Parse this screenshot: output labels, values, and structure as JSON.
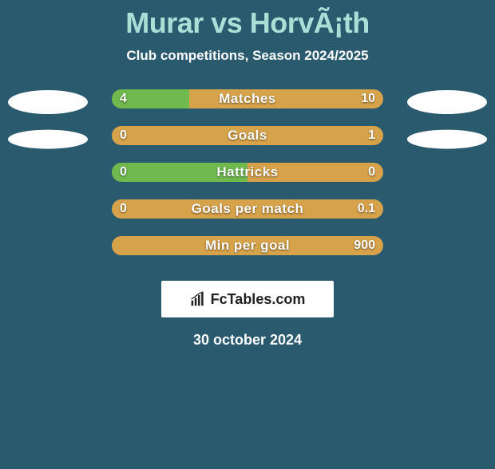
{
  "title": "Murar vs HorvÃ¡th",
  "subtitle": "Club competitions, Season 2024/2025",
  "date": "30 october 2024",
  "logo_text": "FcTables.com",
  "colors": {
    "background": "#2a5a6e",
    "left_fill": "#6fb94f",
    "right_fill": "#d6a24a",
    "title_color": "#a8e0d8",
    "text_color": "#ffffff",
    "ellipse_color": "#ffffff",
    "logo_bg": "#ffffff",
    "logo_text_color": "#222222"
  },
  "side_ellipses": [
    {
      "left_w": 100,
      "left_h": 30,
      "right_w": 100,
      "right_h": 30
    },
    {
      "left_w": 100,
      "left_h": 24,
      "right_w": 100,
      "right_h": 24
    }
  ],
  "bars": [
    {
      "label": "Matches",
      "left_val": "4",
      "right_val": "10",
      "left_pct": 28.6,
      "right_pct": 71.4
    },
    {
      "label": "Goals",
      "left_val": "0",
      "right_val": "1",
      "left_pct": 0.0,
      "right_pct": 100.0
    },
    {
      "label": "Hattricks",
      "left_val": "0",
      "right_val": "0",
      "left_pct": 50.0,
      "right_pct": 50.0
    },
    {
      "label": "Goals per match",
      "left_val": "0",
      "right_val": "0.1",
      "left_pct": 0.0,
      "right_pct": 100.0
    },
    {
      "label": "Min per goal",
      "left_val": "",
      "right_val": "900",
      "left_pct": 0.0,
      "right_pct": 100.0
    }
  ]
}
